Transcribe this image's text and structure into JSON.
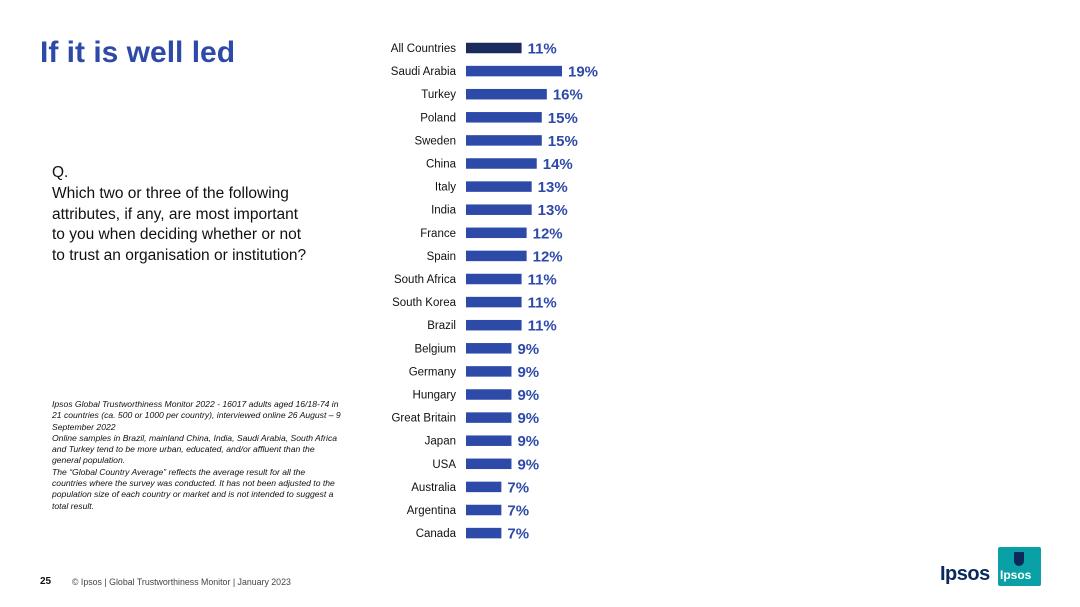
{
  "title": "If it is well led",
  "question": {
    "label": "Q.",
    "text": "Which two or three of the following attributes, if any, are most important to you when deciding whether or not to trust an organisation or institution?"
  },
  "footnote": {
    "line1": "Ipsos Global Trustworthiness Monitor 2022 - 16017 adults aged 16/18-74 in 21 countries (ca. 500 or 1000 per country), interviewed online 26 August – 9 September 2022",
    "line2": "Online samples in Brazil, mainland China, India, Saudi Arabia, South Africa and Turkey tend to be more urban, educated, and/or affluent than the general population.",
    "line3": "The “Global Country Average” reflects the average result for all the countries where the survey was conducted. It has not been adjusted to the population size of each country or market and is not intended to suggest a total result."
  },
  "footer": {
    "page": "25",
    "text": "© Ipsos | Global Trustworthiness Monitor | January 2023"
  },
  "logo": {
    "word": "Ipsos",
    "badge": "Ipsos"
  },
  "colors": {
    "bar": "#2e4aa8",
    "highlight_bar": "#1a2a5c",
    "value_label": "#2e4aa8",
    "title": "#2e4aa8"
  },
  "chart_data": {
    "type": "bar",
    "orientation": "horizontal",
    "title": "If it is well led",
    "categories": [
      "All Countries",
      "Saudi Arabia",
      "Turkey",
      "Poland",
      "Sweden",
      "China",
      "Italy",
      "India",
      "France",
      "Spain",
      "South Africa",
      "South Korea",
      "Brazil",
      "Belgium",
      "Germany",
      "Hungary",
      "Great Britain",
      "Japan",
      "USA",
      "Australia",
      "Argentina",
      "Canada"
    ],
    "values": [
      11,
      19,
      16,
      15,
      15,
      14,
      13,
      13,
      12,
      12,
      11,
      11,
      11,
      9,
      9,
      9,
      9,
      9,
      9,
      7,
      7,
      7
    ],
    "labels": [
      "11%",
      "19%",
      "16%",
      "15%",
      "15%",
      "14%",
      "13%",
      "13%",
      "12%",
      "12%",
      "11%",
      "11%",
      "11%",
      "9%",
      "9%",
      "9%",
      "9%",
      "9%",
      "9%",
      "7%",
      "7%",
      "7%"
    ],
    "highlight": "All Countries",
    "unit": "%",
    "xlim": [
      0,
      19
    ],
    "grid": false,
    "legend": "none"
  }
}
